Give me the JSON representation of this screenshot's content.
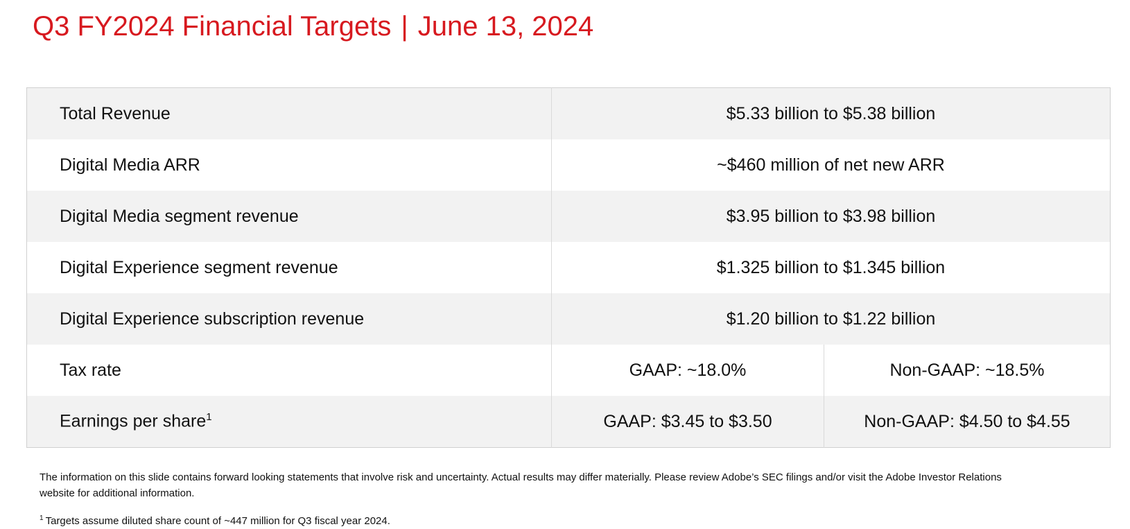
{
  "title": "Q3 FY2024 Financial Targets",
  "separator": "|",
  "date": "June 13, 2024",
  "table": {
    "rows": [
      {
        "label": "Total Revenue",
        "values": [
          "$5.33 billion to $5.38 billion"
        ]
      },
      {
        "label": "Digital Media ARR",
        "values": [
          "~$460 million of net new ARR"
        ]
      },
      {
        "label": "Digital Media segment revenue",
        "values": [
          "$3.95 billion to $3.98 billion"
        ]
      },
      {
        "label": "Digital Experience segment revenue",
        "values": [
          "$1.325 billion to $1.345 billion"
        ]
      },
      {
        "label": "Digital Experience subscription revenue",
        "values": [
          "$1.20 billion to $1.22 billion"
        ]
      },
      {
        "label": "Tax rate",
        "values": [
          "GAAP: ~18.0%",
          "Non-GAAP: ~18.5%"
        ]
      },
      {
        "label": "Earnings per share",
        "marker": "1",
        "values": [
          "GAAP: $3.45 to $3.50",
          "Non-GAAP: $4.50 to $4.55"
        ]
      }
    ]
  },
  "disclaimer": "The information on this slide contains forward looking statements that involve risk and uncertainty. Actual results may differ materially. Please review Adobe’s SEC filings and/or visit the Adobe Investor Relations website for additional information.",
  "footnote": {
    "marker": "1",
    "text": "Targets assume diluted share count of ~447 million for Q3 fiscal year 2024."
  }
}
